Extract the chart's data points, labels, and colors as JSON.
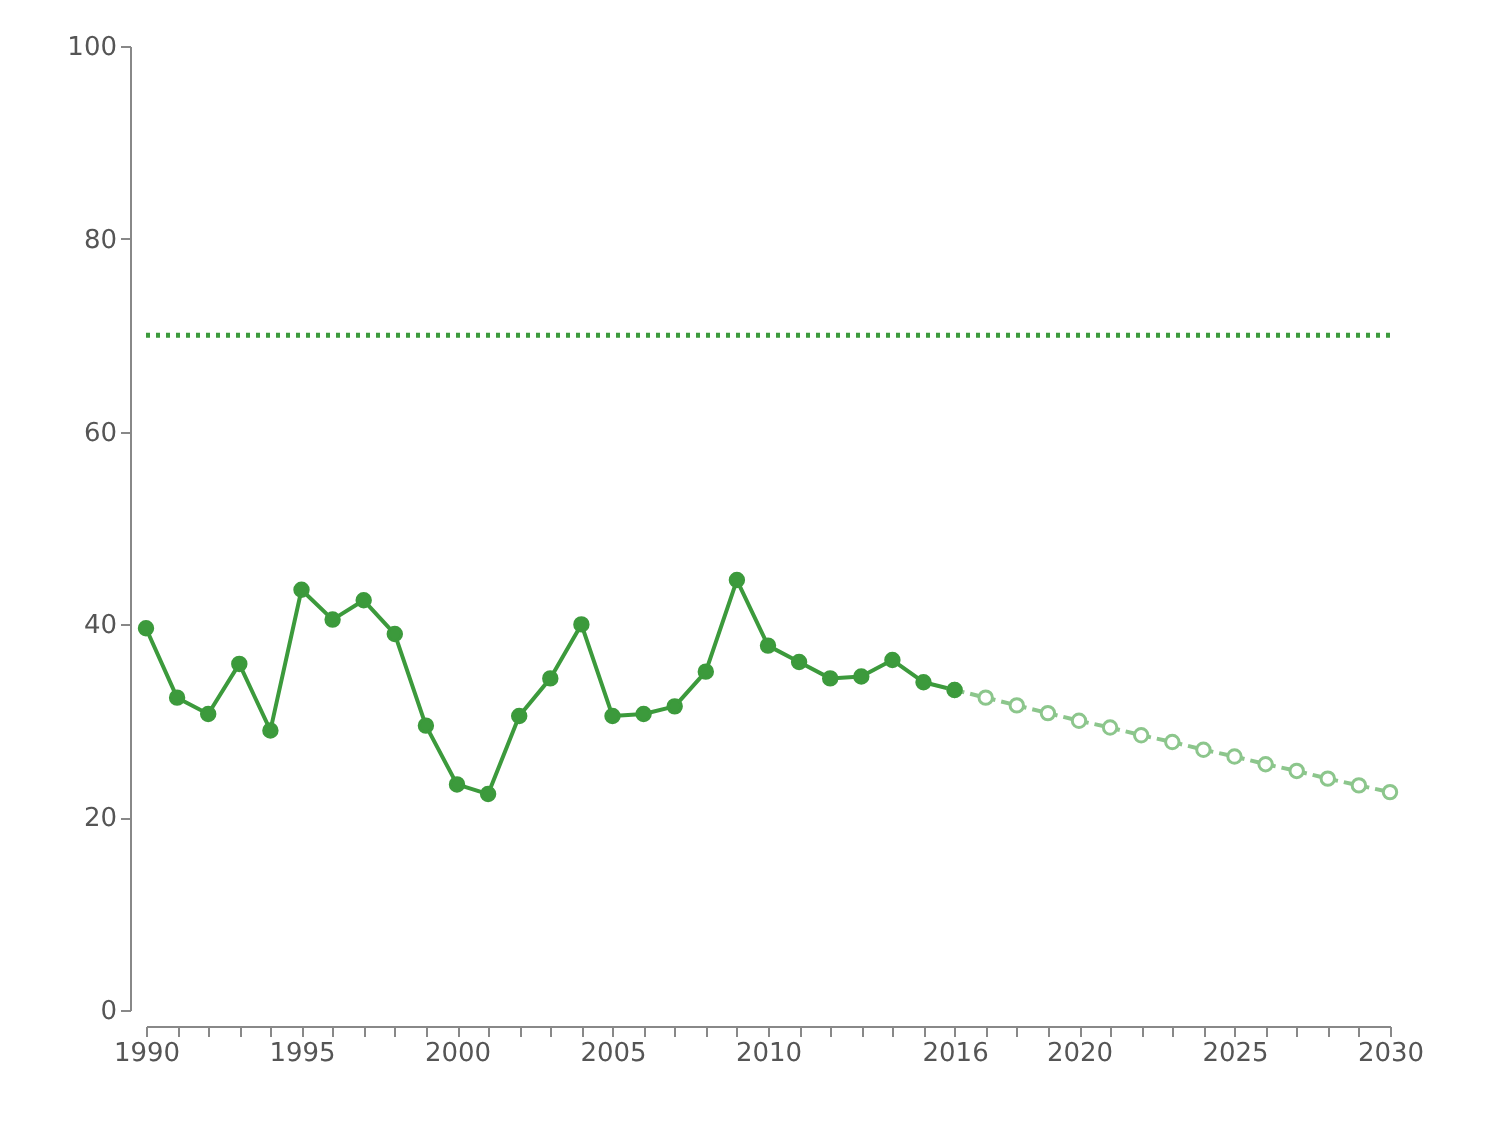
{
  "chart_data": {
    "type": "line",
    "xlim": [
      1990,
      2030
    ],
    "ylim": [
      0,
      100
    ],
    "yticks": [
      0,
      20,
      40,
      60,
      80,
      100
    ],
    "xticks": [
      1990,
      {
        "value": 1991,
        "label": null
      },
      {
        "value": 1992,
        "label": null
      },
      {
        "value": 1993,
        "label": null
      },
      {
        "value": 1994,
        "label": null
      },
      1995,
      {
        "value": 1996,
        "label": null
      },
      {
        "value": 1997,
        "label": null
      },
      {
        "value": 1998,
        "label": null
      },
      {
        "value": 1999,
        "label": null
      },
      2000,
      {
        "value": 2001,
        "label": null
      },
      {
        "value": 2002,
        "label": null
      },
      {
        "value": 2003,
        "label": null
      },
      {
        "value": 2004,
        "label": null
      },
      2005,
      {
        "value": 2006,
        "label": null
      },
      {
        "value": 2007,
        "label": null
      },
      {
        "value": 2008,
        "label": null
      },
      {
        "value": 2009,
        "label": null
      },
      2010,
      {
        "value": 2011,
        "label": null
      },
      {
        "value": 2012,
        "label": null
      },
      {
        "value": 2013,
        "label": null
      },
      {
        "value": 2014,
        "label": null
      },
      {
        "value": 2015,
        "label": null
      },
      2016,
      {
        "value": 2017,
        "label": null
      },
      {
        "value": 2018,
        "label": null
      },
      {
        "value": 2019,
        "label": null
      },
      2020,
      {
        "value": 2021,
        "label": null
      },
      {
        "value": 2022,
        "label": null
      },
      {
        "value": 2023,
        "label": null
      },
      {
        "value": 2024,
        "label": null
      },
      2025,
      {
        "value": 2026,
        "label": null
      },
      {
        "value": 2027,
        "label": null
      },
      {
        "value": 2028,
        "label": null
      },
      {
        "value": 2029,
        "label": null
      },
      2030
    ],
    "grid": false,
    "series": [
      {
        "color": "#3c9a3c",
        "marker": "circle",
        "line_style": "solid",
        "x": [
          1990,
          1991,
          1992,
          1993,
          1994,
          1995,
          1996,
          1997,
          1998,
          1999,
          2000,
          2001,
          2002,
          2003,
          2004,
          2005,
          2006,
          2007,
          2008,
          2009,
          2010,
          2011,
          2012,
          2013,
          2014,
          2015,
          2016
        ],
        "values": [
          39.6,
          32.4,
          30.7,
          35.9,
          29.0,
          43.6,
          40.5,
          42.5,
          39.0,
          29.5,
          23.4,
          22.4,
          30.5,
          34.4,
          40.0,
          30.5,
          30.7,
          31.5,
          35.1,
          44.6,
          37.8,
          36.1,
          34.4,
          34.6,
          36.3,
          34.0,
          33.2
        ]
      },
      {
        "color": "#8cc68c",
        "marker": "circle",
        "line_style": "dashed",
        "x": [
          2016,
          2017,
          2018,
          2019,
          2020,
          2021,
          2022,
          2023,
          2024,
          2025,
          2026,
          2027,
          2028,
          2029,
          2030
        ],
        "values": [
          33.2,
          32.4,
          31.6,
          30.8,
          30.0,
          29.3,
          28.5,
          27.8,
          27.0,
          26.3,
          25.5,
          24.8,
          24.0,
          23.3,
          22.6
        ]
      }
    ],
    "ref_lines": [
      {
        "axis": "y",
        "value": 70,
        "color": "#3c9a3c",
        "line_style": "dotted"
      }
    ]
  }
}
